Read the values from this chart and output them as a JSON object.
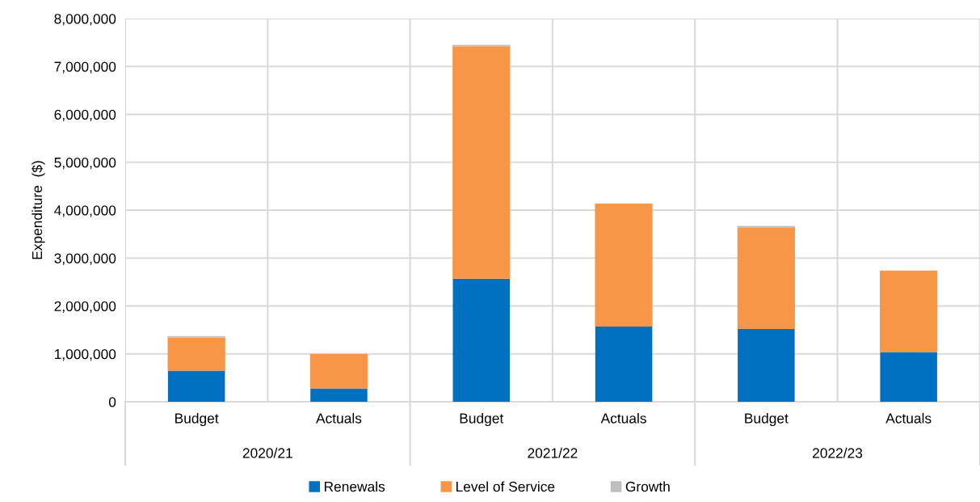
{
  "chart_data": {
    "type": "bar",
    "stacked": true,
    "ylabel": "Expenditure  ($)",
    "categories": [
      "Budget",
      "Actuals",
      "Budget",
      "Actuals",
      "Budget",
      "Actuals"
    ],
    "annotations": [
      "2020/21",
      "2021/22",
      "2022/23"
    ],
    "series": [
      {
        "name": "Renewals",
        "color": "#0070c0",
        "values": [
          650000,
          280000,
          2570000,
          1570000,
          1520000,
          1040000
        ]
      },
      {
        "name": "Level of Service",
        "color": "#f79646",
        "values": [
          690000,
          720000,
          4850000,
          2570000,
          2120000,
          1700000
        ]
      },
      {
        "name": "Growth",
        "color": "#bfbfbf",
        "values": [
          30000,
          0,
          30000,
          0,
          30000,
          0
        ]
      }
    ],
    "ylim": [
      0,
      8000000
    ],
    "yticks": [
      {
        "value": 0,
        "label": "0"
      },
      {
        "value": 1000000,
        "label": "1,000,000"
      },
      {
        "value": 2000000,
        "label": "2,000,000"
      },
      {
        "value": 3000000,
        "label": "3,000,000"
      },
      {
        "value": 4000000,
        "label": "4,000,000"
      },
      {
        "value": 5000000,
        "label": "5,000,000"
      },
      {
        "value": 6000000,
        "label": "6,000,000"
      },
      {
        "value": 7000000,
        "label": "7,000,000"
      },
      {
        "value": 8000000,
        "label": "8,000,000"
      }
    ],
    "grid": true,
    "legend": "bottom"
  }
}
